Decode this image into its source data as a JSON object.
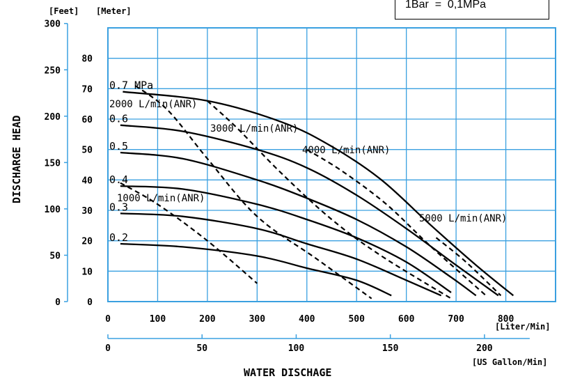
{
  "legend_note": "1Bar  =  0,1MPa",
  "chart_data": {
    "type": "line",
    "ylabel": "DISCHARGE HEAD",
    "xlabel": "WATER DISCHAGE",
    "y_unit_feet": "[Feet]",
    "y_unit_meter": "[Meter]",
    "x_unit_liter": "[Liter/Min]",
    "x_unit_gallon": "[US Gallon/Min]",
    "x_ticks_liter": [
      0,
      100,
      200,
      300,
      400,
      500,
      600,
      700,
      800
    ],
    "x_ticks_gallon": [
      0,
      50,
      100,
      150,
      200
    ],
    "y_ticks_meter": [
      0,
      10,
      20,
      30,
      40,
      50,
      60,
      70,
      80
    ],
    "y_ticks_feet": [
      0,
      50,
      100,
      150,
      200,
      250,
      300
    ],
    "xlim": [
      0,
      900
    ],
    "ylim_meter": [
      0,
      90
    ],
    "grid": true,
    "pressure_unit": "MPa",
    "pressure_curves": [
      {
        "label": "0.7",
        "points": [
          [
            30,
            69
          ],
          [
            200,
            66
          ],
          [
            350,
            59
          ],
          [
            450,
            51
          ],
          [
            550,
            40
          ],
          [
            650,
            25
          ],
          [
            740,
            12
          ],
          [
            815,
            2
          ]
        ]
      },
      {
        "label": "0.6",
        "points": [
          [
            25,
            58
          ],
          [
            150,
            56
          ],
          [
            300,
            50
          ],
          [
            400,
            44
          ],
          [
            500,
            35
          ],
          [
            600,
            24
          ],
          [
            700,
            12
          ],
          [
            785,
            2
          ]
        ]
      },
      {
        "label": "0.5",
        "points": [
          [
            25,
            49
          ],
          [
            150,
            47
          ],
          [
            300,
            40
          ],
          [
            400,
            34
          ],
          [
            500,
            27
          ],
          [
            600,
            18
          ],
          [
            690,
            8
          ],
          [
            740,
            2
          ]
        ]
      },
      {
        "label": "0.4",
        "points": [
          [
            25,
            38
          ],
          [
            150,
            37
          ],
          [
            300,
            32
          ],
          [
            400,
            27
          ],
          [
            500,
            21
          ],
          [
            600,
            13
          ],
          [
            690,
            3
          ]
        ]
      },
      {
        "label": "0.3",
        "points": [
          [
            25,
            29
          ],
          [
            150,
            28
          ],
          [
            300,
            24
          ],
          [
            400,
            19
          ],
          [
            500,
            14
          ],
          [
            600,
            7
          ],
          [
            670,
            2
          ]
        ]
      },
      {
        "label": "0.2",
        "points": [
          [
            25,
            19
          ],
          [
            150,
            18
          ],
          [
            300,
            15
          ],
          [
            400,
            11
          ],
          [
            500,
            7
          ],
          [
            570,
            2
          ]
        ]
      }
    ],
    "air_flow_curves": [
      {
        "label": "1000 L/min(ANR)",
        "points": [
          [
            25,
            39
          ],
          [
            100,
            32
          ],
          [
            200,
            20
          ],
          [
            300,
            6
          ]
        ]
      },
      {
        "label": "2000 L/min(ANR)",
        "points": [
          [
            55,
            71
          ],
          [
            120,
            63
          ],
          [
            200,
            47
          ],
          [
            300,
            28
          ],
          [
            420,
            14
          ],
          [
            530,
            1
          ]
        ]
      },
      {
        "label": "3000 L/min(ANR)",
        "points": [
          [
            200,
            66
          ],
          [
            260,
            57
          ],
          [
            350,
            42
          ],
          [
            450,
            27
          ],
          [
            550,
            15
          ],
          [
            690,
            1
          ]
        ]
      },
      {
        "label": "4000 L/min(ANR)",
        "points": [
          [
            400,
            50
          ],
          [
            470,
            43
          ],
          [
            560,
            32
          ],
          [
            650,
            18
          ],
          [
            760,
            2
          ]
        ]
      },
      {
        "label": "5000 L/min(ANR)",
        "points": [
          [
            660,
            21
          ],
          [
            720,
            13
          ],
          [
            790,
            2
          ]
        ]
      }
    ]
  }
}
